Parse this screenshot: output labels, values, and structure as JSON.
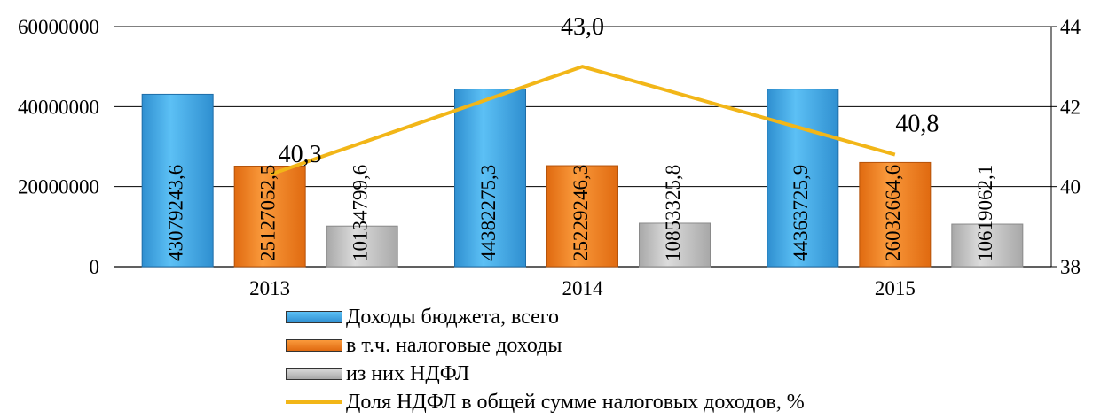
{
  "chart_data": {
    "type": "bar",
    "categories": [
      "2013",
      "2014",
      "2015"
    ],
    "series": [
      {
        "name": "Доходы бюджета, всего",
        "values": [
          43079243.6,
          44382275.3,
          44363725.9
        ],
        "labels": [
          "43079243,6",
          "44382275,3",
          "44363725,9"
        ],
        "color": "#41aee8",
        "axis": "left"
      },
      {
        "name": "в т.ч. налоговые доходы",
        "values": [
          25127052.5,
          25229246.3,
          26032664.6
        ],
        "labels": [
          "25127052,5",
          "25229246,3",
          "26032664,6"
        ],
        "color": "#f5801f",
        "axis": "left"
      },
      {
        "name": "из них НДФЛ",
        "values": [
          10134799.6,
          10853325.8,
          10619062.1
        ],
        "labels": [
          "10134799,6",
          "10853325,8",
          "10619062,1"
        ],
        "color": "#c0c0c0",
        "axis": "left"
      },
      {
        "name": "Доля НДФЛ в общей сумме налоговых доходов, %",
        "type": "line",
        "values": [
          40.3,
          43.0,
          40.8
        ],
        "labels": [
          "40,3",
          "43,0",
          "40,8"
        ],
        "color": "#f2b618",
        "axis": "right"
      }
    ],
    "y_left": {
      "ylim": [
        0,
        60000000
      ],
      "ticks": [
        "0",
        "20000000",
        "40000000",
        "60000000"
      ]
    },
    "y_right": {
      "ylim": [
        38,
        44
      ],
      "ticks": [
        "38",
        "40",
        "42",
        "44"
      ]
    },
    "grid": true,
    "legend_position": "bottom"
  }
}
